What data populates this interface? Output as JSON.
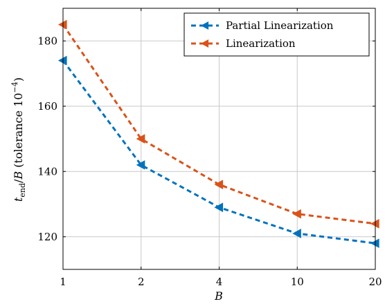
{
  "chart_data": {
    "type": "line",
    "categories": [
      "1",
      "2",
      "4",
      "10",
      "20"
    ],
    "xlabel": "B",
    "ylabel": "t_end/B (tolerance 10^-4)",
    "ylim": [
      110,
      190
    ],
    "yticks": [
      120,
      140,
      160,
      180
    ],
    "grid": true,
    "legend_position": "top-right",
    "series": [
      {
        "name": "Partial Linearization",
        "color": "#0072BD",
        "values": [
          174,
          142,
          129,
          121,
          118
        ]
      },
      {
        "name": "Linearization",
        "color": "#D95319",
        "values": [
          185,
          150,
          136,
          127,
          124
        ]
      }
    ]
  }
}
